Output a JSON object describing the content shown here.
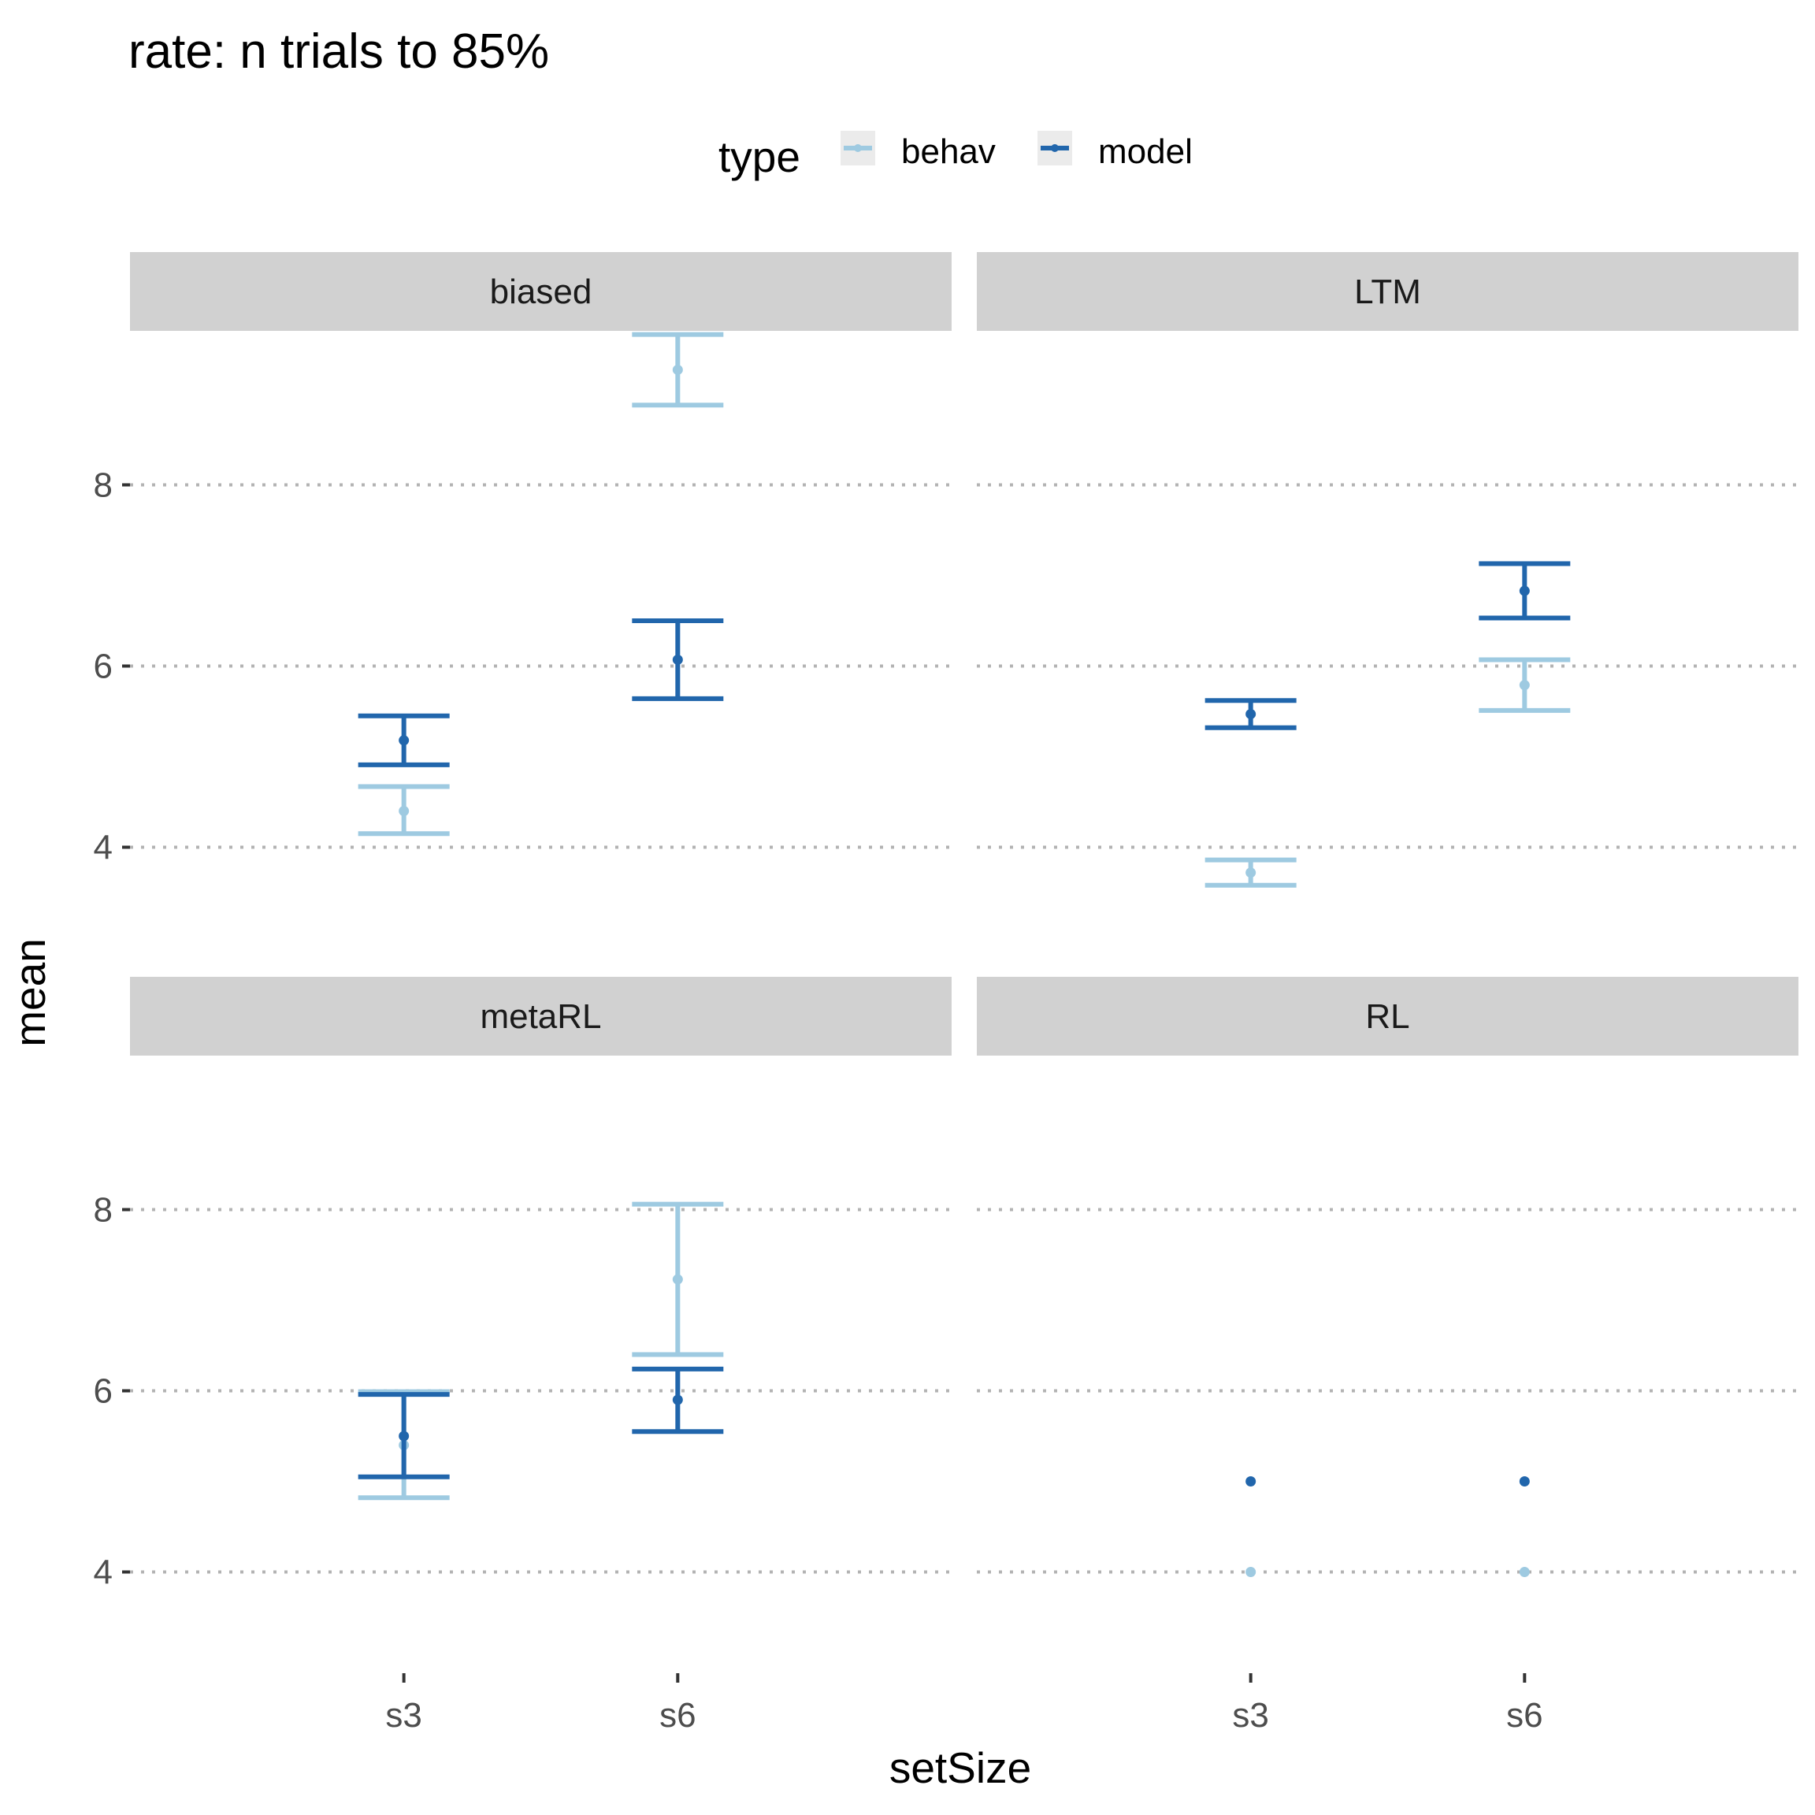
{
  "chart_data": {
    "type": "errorbar",
    "title": "rate: n trials to 85%",
    "xlabel": "setSize",
    "ylabel": "mean",
    "categories": [
      "s3",
      "s6"
    ],
    "y_ticks": [
      4,
      6,
      8
    ],
    "ylim": [
      2.9,
      9.7
    ],
    "grid": "horizontal dotted at major ticks",
    "legend": {
      "title": "type",
      "position": "top",
      "entries": [
        {
          "name": "behav",
          "color": "#9ecae1"
        },
        {
          "name": "model",
          "color": "#2166ac"
        }
      ]
    },
    "facets": [
      {
        "label": "biased",
        "series": [
          {
            "name": "behav",
            "points": [
              {
                "x": "s3",
                "mean": 4.4,
                "lower": 4.15,
                "upper": 4.67
              },
              {
                "x": "s6",
                "mean": 9.27,
                "lower": 8.88,
                "upper": 9.66
              }
            ]
          },
          {
            "name": "model",
            "points": [
              {
                "x": "s3",
                "mean": 5.18,
                "lower": 4.91,
                "upper": 5.45
              },
              {
                "x": "s6",
                "mean": 6.07,
                "lower": 5.64,
                "upper": 6.5
              }
            ]
          }
        ]
      },
      {
        "label": "LTM",
        "series": [
          {
            "name": "behav",
            "points": [
              {
                "x": "s3",
                "mean": 3.72,
                "lower": 3.58,
                "upper": 3.86
              },
              {
                "x": "s6",
                "mean": 5.79,
                "lower": 5.51,
                "upper": 6.07
              }
            ]
          },
          {
            "name": "model",
            "points": [
              {
                "x": "s3",
                "mean": 5.47,
                "lower": 5.32,
                "upper": 5.62
              },
              {
                "x": "s6",
                "mean": 6.83,
                "lower": 6.53,
                "upper": 7.13
              }
            ]
          }
        ]
      },
      {
        "label": "metaRL",
        "series": [
          {
            "name": "behav",
            "points": [
              {
                "x": "s3",
                "mean": 5.4,
                "lower": 4.82,
                "upper": 5.99
              },
              {
                "x": "s6",
                "mean": 7.23,
                "lower": 6.4,
                "upper": 8.06
              }
            ]
          },
          {
            "name": "model",
            "points": [
              {
                "x": "s3",
                "mean": 5.5,
                "lower": 5.05,
                "upper": 5.96
              },
              {
                "x": "s6",
                "mean": 5.9,
                "lower": 5.55,
                "upper": 6.24
              }
            ]
          }
        ]
      },
      {
        "label": "RL",
        "series": [
          {
            "name": "behav",
            "points": [
              {
                "x": "s3",
                "mean": 4.0,
                "lower": 4.0,
                "upper": 4.0
              },
              {
                "x": "s6",
                "mean": 4.0,
                "lower": 4.0,
                "upper": 4.0
              }
            ]
          },
          {
            "name": "model",
            "points": [
              {
                "x": "s3",
                "mean": 5.0,
                "lower": 5.0,
                "upper": 5.0
              },
              {
                "x": "s6",
                "mean": 5.0,
                "lower": 5.0,
                "upper": 5.0
              }
            ]
          }
        ]
      }
    ]
  }
}
